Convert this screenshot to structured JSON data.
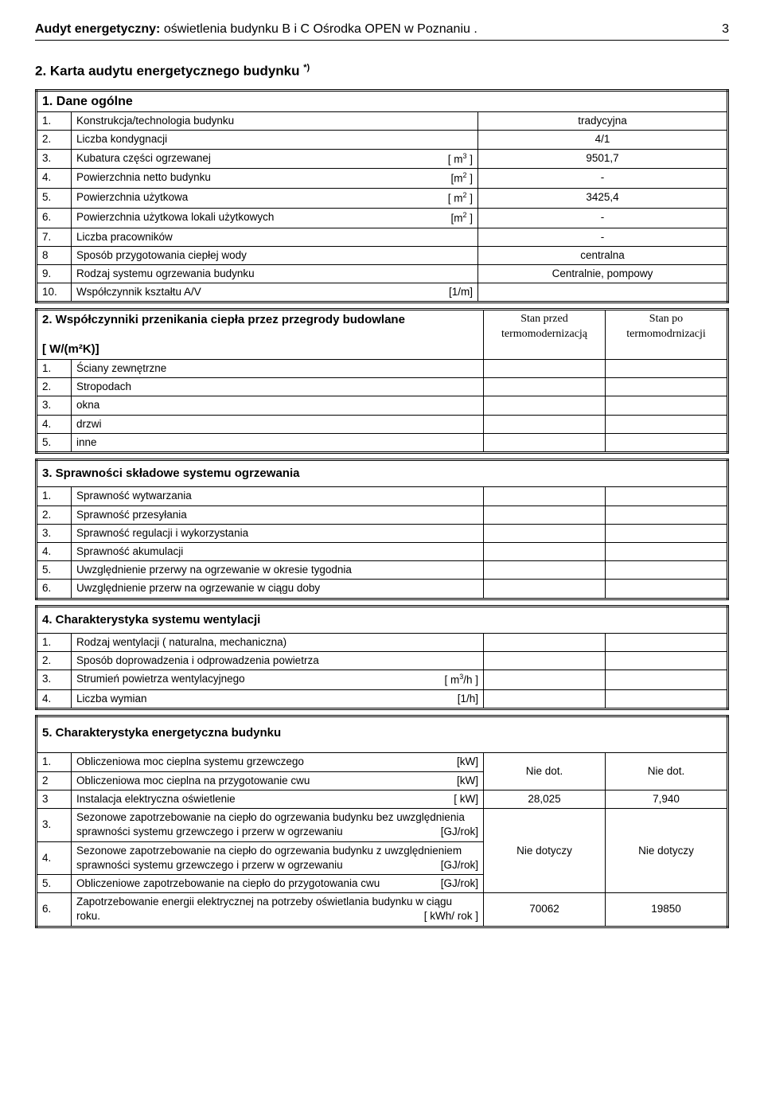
{
  "header": {
    "bold": "Audyt energetyczny:",
    "rest": " oświetlenia budynku  B i C  Ośrodka OPEN  w Poznaniu .",
    "page": "3"
  },
  "title": "2. Karta audytu energetycznego budynku ",
  "title_sup": "*)",
  "s1": {
    "heading": "1. Dane ogólne",
    "rows": [
      {
        "n": "1.",
        "label": "Konstrukcja/technologia budynku",
        "unit": "",
        "v1": "tradycyjna"
      },
      {
        "n": "2.",
        "label": "Liczba kondygnacji",
        "unit": "",
        "v1": "4/1"
      },
      {
        "n": "3.",
        "label": "Kubatura części ogrzewanej",
        "unit": "[ m³ ]",
        "v1": "9501,7"
      },
      {
        "n": "4.",
        "label": "Powierzchnia netto budynku",
        "unit": "[m² ]",
        "v1": "-"
      },
      {
        "n": "5.",
        "label": "Powierzchnia użytkowa",
        "unit": "[ m² ]",
        "v1": "3425,4"
      },
      {
        "n": "6.",
        "label": "Powierzchnia użytkowa lokali użytkowych",
        "unit": "[m² ]",
        "v1": "-"
      },
      {
        "n": "7.",
        "label": "Liczba  pracowników",
        "unit": "",
        "v1": "-"
      },
      {
        "n": "8",
        "label": "Sposób przygotowania ciepłej wody",
        "unit": "",
        "v1": "centralna"
      },
      {
        "n": "9.",
        "label": "Rodzaj systemu ogrzewania budynku",
        "unit": "",
        "v1": "Centralnie, pompowy"
      },
      {
        "n": "10.",
        "label": "Współczynnik kształtu A/V",
        "unit": "[1/m]",
        "v1": ""
      }
    ]
  },
  "s2": {
    "heading": "2. Współczynniki przenikania ciepła przez przegrody budowlane",
    "heading2": "[ W/(m²K)]",
    "col1": "Stan  przed termomodernizacją",
    "col2": "Stan po termomodrnizacji",
    "rows": [
      {
        "n": "1.",
        "label": "Ściany zewnętrzne"
      },
      {
        "n": "2.",
        "label": "Stropodach"
      },
      {
        "n": "3.",
        "label": "okna"
      },
      {
        "n": "4.",
        "label": "drzwi"
      },
      {
        "n": "5.",
        "label": "inne"
      }
    ]
  },
  "s3": {
    "heading": "3.  Sprawności składowe systemu ogrzewania",
    "rows": [
      {
        "n": "1.",
        "label": "Sprawność wytwarzania"
      },
      {
        "n": "2.",
        "label": "Sprawność przesyłania"
      },
      {
        "n": "3.",
        "label": "Sprawność regulacji i wykorzystania"
      },
      {
        "n": "4.",
        "label": "Sprawność akumulacji"
      },
      {
        "n": "5.",
        "label": "Uwzględnienie przerwy na ogrzewanie w okresie tygodnia"
      },
      {
        "n": "6.",
        "label": "Uwzględnienie przerw na ogrzewanie w ciągu doby"
      }
    ]
  },
  "s4": {
    "heading": "4. Charakterystyka systemu wentylacji",
    "rows": [
      {
        "n": "1.",
        "label": "Rodzaj wentylacji ( naturalna, mechaniczna)",
        "unit": ""
      },
      {
        "n": "2.",
        "label": "Sposób doprowadzenia i odprowadzenia powietrza",
        "unit": ""
      },
      {
        "n": "3.",
        "label": "Strumień powietrza wentylacyjnego",
        "unit": "[ m³/h ]"
      },
      {
        "n": "4.",
        "label": "Liczba wymian",
        "unit": "[1/h]"
      }
    ]
  },
  "s5": {
    "heading": "5. Charakterystyka energetyczna budynku",
    "rows": [
      {
        "n": "1.",
        "label": "Obliczeniowa moc cieplna systemu grzewczego",
        "unit": "[kW]",
        "v1": "Nie dot.",
        "v2": "Nie dot.",
        "span": "top"
      },
      {
        "n": "2",
        "label": "Obliczeniowa moc cieplna na przygotowanie cwu",
        "unit": "[kW]",
        "span": "bot"
      },
      {
        "n": "3",
        "label": "Instalacja elektryczna oświetlenie",
        "unit": "[ kW]",
        "v1": "28,025",
        "v2": "7,940"
      },
      {
        "n": "3.",
        "label": "Sezonowe zapotrzebowanie na ciepło do ogrzewania budynku bez uwzględnienia sprawności systemu grzewczego i przerw w ogrzewaniu",
        "unit": "[GJ/rok]",
        "v1": "Nie dotyczy",
        "v2": "Nie dotyczy",
        "span": "top3"
      },
      {
        "n": "4.",
        "label": "Sezonowe zapotrzebowanie na ciepło do ogrzewania budynku z uwzględnieniem sprawności systemu grzewczego i przerw w ogrzewaniu",
        "unit": "[GJ/rok]",
        "span": "mid3"
      },
      {
        "n": "5.",
        "label": "Obliczeniowe zapotrzebowanie na ciepło do przygotowania cwu",
        "unit": "[GJ/rok]",
        "span": "bot3"
      },
      {
        "n": "6.",
        "label": "Zapotrzebowanie energii elektrycznej na potrzeby oświetlania budynku  w ciągu roku.",
        "unit": "[ kWh/ rok ]",
        "v1": "70062",
        "v2": "19850"
      }
    ]
  }
}
